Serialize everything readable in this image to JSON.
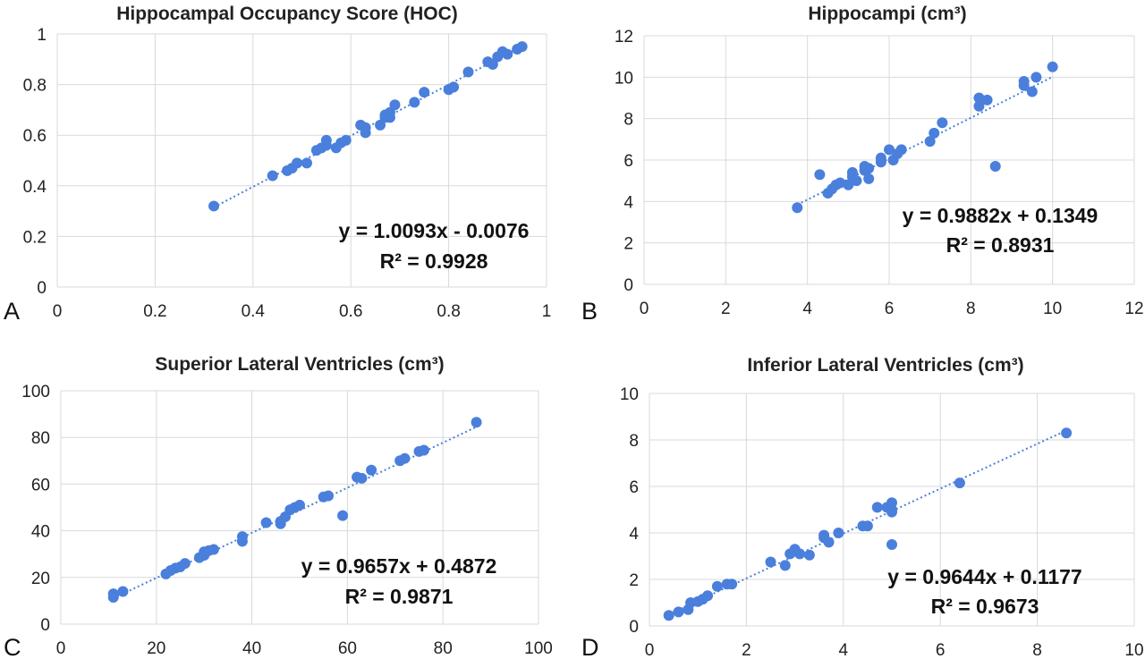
{
  "chart_data": [
    {
      "type": "scatter",
      "panel_label": "A",
      "title": "Hippocampal Occupancy Score (HOC)",
      "xlim": [
        0,
        1
      ],
      "ylim": [
        0,
        1
      ],
      "x_ticks": [
        0,
        0.2,
        0.4,
        0.6,
        0.8,
        1
      ],
      "y_ticks": [
        0,
        0.2,
        0.4,
        0.6,
        0.8,
        1
      ],
      "x_tick_labels": [
        "0",
        "0.2",
        "0.4",
        "0.6",
        "0.8",
        "1"
      ],
      "y_tick_labels": [
        "0",
        "0.2",
        "0.4",
        "0.6",
        "0.8",
        "1"
      ],
      "grid": true,
      "marker_color": "#4a7fdc",
      "trendline": {
        "slope": 1.0093,
        "intercept": -0.0076,
        "x_range": [
          0.32,
          0.95
        ],
        "style": "dotted"
      },
      "equation": "y = 1.0093x - 0.0076",
      "r_squared": "R² = 0.9928",
      "points": [
        [
          0.32,
          0.32
        ],
        [
          0.44,
          0.44
        ],
        [
          0.47,
          0.46
        ],
        [
          0.48,
          0.47
        ],
        [
          0.49,
          0.49
        ],
        [
          0.51,
          0.49
        ],
        [
          0.53,
          0.54
        ],
        [
          0.54,
          0.55
        ],
        [
          0.55,
          0.56
        ],
        [
          0.55,
          0.58
        ],
        [
          0.57,
          0.55
        ],
        [
          0.58,
          0.57
        ],
        [
          0.59,
          0.58
        ],
        [
          0.62,
          0.64
        ],
        [
          0.63,
          0.61
        ],
        [
          0.63,
          0.63
        ],
        [
          0.66,
          0.64
        ],
        [
          0.67,
          0.67
        ],
        [
          0.67,
          0.68
        ],
        [
          0.68,
          0.67
        ],
        [
          0.68,
          0.69
        ],
        [
          0.69,
          0.72
        ],
        [
          0.73,
          0.73
        ],
        [
          0.75,
          0.77
        ],
        [
          0.8,
          0.78
        ],
        [
          0.81,
          0.79
        ],
        [
          0.84,
          0.85
        ],
        [
          0.88,
          0.89
        ],
        [
          0.89,
          0.88
        ],
        [
          0.9,
          0.91
        ],
        [
          0.91,
          0.93
        ],
        [
          0.92,
          0.92
        ],
        [
          0.94,
          0.94
        ],
        [
          0.95,
          0.95
        ]
      ]
    },
    {
      "type": "scatter",
      "panel_label": "B",
      "title": "Hippocampi (cm³)",
      "xlim": [
        0,
        12
      ],
      "ylim": [
        0,
        12
      ],
      "x_ticks": [
        0,
        2,
        4,
        6,
        8,
        10,
        12
      ],
      "y_ticks": [
        0,
        2,
        4,
        6,
        8,
        10,
        12
      ],
      "x_tick_labels": [
        "0",
        "2",
        "4",
        "6",
        "8",
        "10",
        "12"
      ],
      "y_tick_labels": [
        "0",
        "2",
        "4",
        "6",
        "8",
        "10",
        "12"
      ],
      "grid": true,
      "marker_color": "#4a7fdc",
      "trendline": {
        "slope": 0.9882,
        "intercept": 0.1349,
        "x_range": [
          3.75,
          10
        ],
        "style": "dotted"
      },
      "equation": "y = 0.9882x + 0.1349",
      "r_squared": "R² = 0.8931",
      "points": [
        [
          3.75,
          3.7
        ],
        [
          4.3,
          5.3
        ],
        [
          4.5,
          4.4
        ],
        [
          4.6,
          4.6
        ],
        [
          4.7,
          4.8
        ],
        [
          4.8,
          4.9
        ],
        [
          5.0,
          4.8
        ],
        [
          5.1,
          5.2
        ],
        [
          5.1,
          5.4
        ],
        [
          5.2,
          5.0
        ],
        [
          5.4,
          5.5
        ],
        [
          5.4,
          5.7
        ],
        [
          5.5,
          5.1
        ],
        [
          5.5,
          5.6
        ],
        [
          5.8,
          5.9
        ],
        [
          5.8,
          6.1
        ],
        [
          6.0,
          6.5
        ],
        [
          6.1,
          6.0
        ],
        [
          6.2,
          6.3
        ],
        [
          6.3,
          6.5
        ],
        [
          7.0,
          6.9
        ],
        [
          7.1,
          7.3
        ],
        [
          7.3,
          7.8
        ],
        [
          8.2,
          8.6
        ],
        [
          8.2,
          9.0
        ],
        [
          8.4,
          8.9
        ],
        [
          8.6,
          5.7
        ],
        [
          9.3,
          9.6
        ],
        [
          9.3,
          9.8
        ],
        [
          9.5,
          9.3
        ],
        [
          9.6,
          10.0
        ],
        [
          10.0,
          10.5
        ]
      ]
    },
    {
      "type": "scatter",
      "panel_label": "C",
      "title": "Superior Lateral Ventricles (cm³)",
      "xlim": [
        0,
        100
      ],
      "ylim": [
        0,
        100
      ],
      "x_ticks": [
        0,
        20,
        40,
        60,
        80,
        100
      ],
      "y_ticks": [
        0,
        20,
        40,
        60,
        80,
        100
      ],
      "x_tick_labels": [
        "0",
        "20",
        "40",
        "60",
        "80",
        "100"
      ],
      "y_tick_labels": [
        "0",
        "20",
        "40",
        "60",
        "80",
        "100"
      ],
      "grid": true,
      "marker_color": "#4a7fdc",
      "trendline": {
        "slope": 0.9657,
        "intercept": 0.4872,
        "x_range": [
          11,
          88
        ],
        "style": "dotted"
      },
      "equation": "y = 0.9657x + 0.4872",
      "r_squared": "R² = 0.9871",
      "points": [
        [
          11,
          11.5
        ],
        [
          11,
          13
        ],
        [
          13,
          14
        ],
        [
          22,
          21.5
        ],
        [
          23,
          23
        ],
        [
          24,
          24
        ],
        [
          25,
          24.5
        ],
        [
          26,
          26
        ],
        [
          29,
          28.5
        ],
        [
          30,
          29.5
        ],
        [
          30,
          31
        ],
        [
          31,
          31.5
        ],
        [
          32,
          32
        ],
        [
          38,
          35.5
        ],
        [
          38,
          37.5
        ],
        [
          43,
          43.5
        ],
        [
          46,
          43
        ],
        [
          46,
          44
        ],
        [
          47,
          46
        ],
        [
          48,
          49
        ],
        [
          49,
          50
        ],
        [
          50,
          51
        ],
        [
          55,
          54.5
        ],
        [
          56,
          55
        ],
        [
          59,
          46.5
        ],
        [
          62,
          63
        ],
        [
          63,
          62.5
        ],
        [
          65,
          66
        ],
        [
          71,
          70
        ],
        [
          72,
          71
        ],
        [
          75,
          74
        ],
        [
          76,
          74.5
        ],
        [
          87,
          86.5
        ]
      ]
    },
    {
      "type": "scatter",
      "panel_label": "D",
      "title": "Inferior Lateral Ventricles (cm³)",
      "xlim": [
        0,
        10
      ],
      "ylim": [
        0,
        10
      ],
      "x_ticks": [
        0,
        2,
        4,
        6,
        8,
        10
      ],
      "y_ticks": [
        0,
        2,
        4,
        6,
        8,
        10
      ],
      "x_tick_labels": [
        "0",
        "2",
        "4",
        "6",
        "8",
        "10"
      ],
      "y_tick_labels": [
        "0",
        "2",
        "4",
        "6",
        "8",
        "10"
      ],
      "grid": true,
      "marker_color": "#4a7fdc",
      "trendline": {
        "slope": 0.9644,
        "intercept": 0.1177,
        "x_range": [
          0.4,
          8.6
        ],
        "style": "dotted"
      },
      "equation": "y = 0.9644x + 0.1177",
      "r_squared": "R² = 0.9673",
      "points": [
        [
          0.4,
          0.45
        ],
        [
          0.6,
          0.6
        ],
        [
          0.8,
          0.7
        ],
        [
          0.85,
          1.0
        ],
        [
          1.0,
          1.05
        ],
        [
          1.1,
          1.15
        ],
        [
          1.2,
          1.3
        ],
        [
          1.4,
          1.7
        ],
        [
          1.6,
          1.8
        ],
        [
          1.7,
          1.8
        ],
        [
          2.5,
          2.75
        ],
        [
          2.8,
          2.6
        ],
        [
          2.9,
          3.1
        ],
        [
          3.0,
          3.3
        ],
        [
          3.1,
          3.1
        ],
        [
          3.3,
          3.05
        ],
        [
          3.6,
          3.8
        ],
        [
          3.6,
          3.9
        ],
        [
          3.7,
          3.6
        ],
        [
          3.9,
          4.0
        ],
        [
          4.4,
          4.3
        ],
        [
          4.5,
          4.3
        ],
        [
          4.7,
          5.1
        ],
        [
          4.9,
          5.1
        ],
        [
          5.0,
          5.3
        ],
        [
          5.0,
          5.0
        ],
        [
          5.0,
          4.9
        ],
        [
          5.0,
          3.5
        ],
        [
          6.4,
          6.15
        ],
        [
          8.6,
          8.3
        ]
      ]
    }
  ]
}
